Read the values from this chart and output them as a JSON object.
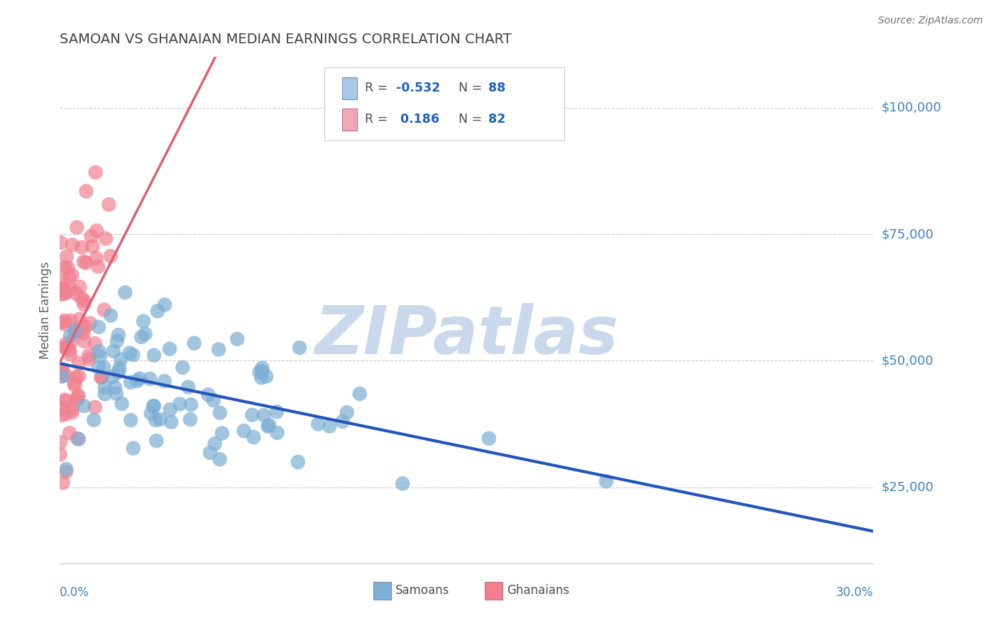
{
  "title": "SAMOAN VS GHANAIAN MEDIAN EARNINGS CORRELATION CHART",
  "source": "Source: ZipAtlas.com",
  "ylabel": "Median Earnings",
  "y_ticks": [
    25000,
    50000,
    75000,
    100000
  ],
  "y_tick_labels": [
    "$25,000",
    "$50,000",
    "$75,000",
    "$100,000"
  ],
  "x_min": 0.0,
  "x_max": 0.3,
  "y_min": 10000,
  "y_max": 110000,
  "samoans_color": "#7bafd4",
  "ghanaians_color": "#f08090",
  "samoans_R": -0.532,
  "ghanaians_R": 0.186,
  "samoans_N": 88,
  "ghanaians_N": 82,
  "blue_line_color": "#2255bb",
  "pink_line_color": "#e06070",
  "dashed_line_color": "#bbbbcc",
  "watermark_text": "ZIPatlas",
  "watermark_color": "#cad8ec",
  "background_color": "#ffffff",
  "grid_color": "#c8c8d8",
  "title_color": "#404040",
  "axis_label_color": "#4080c0",
  "legend_blue_color": "#a8c8e8",
  "legend_pink_color": "#f0a8b8",
  "legend_R_color": "#2060c0",
  "legend_N_color": "#2060c0",
  "samoans_seed": 10,
  "ghanaians_seed": 20
}
